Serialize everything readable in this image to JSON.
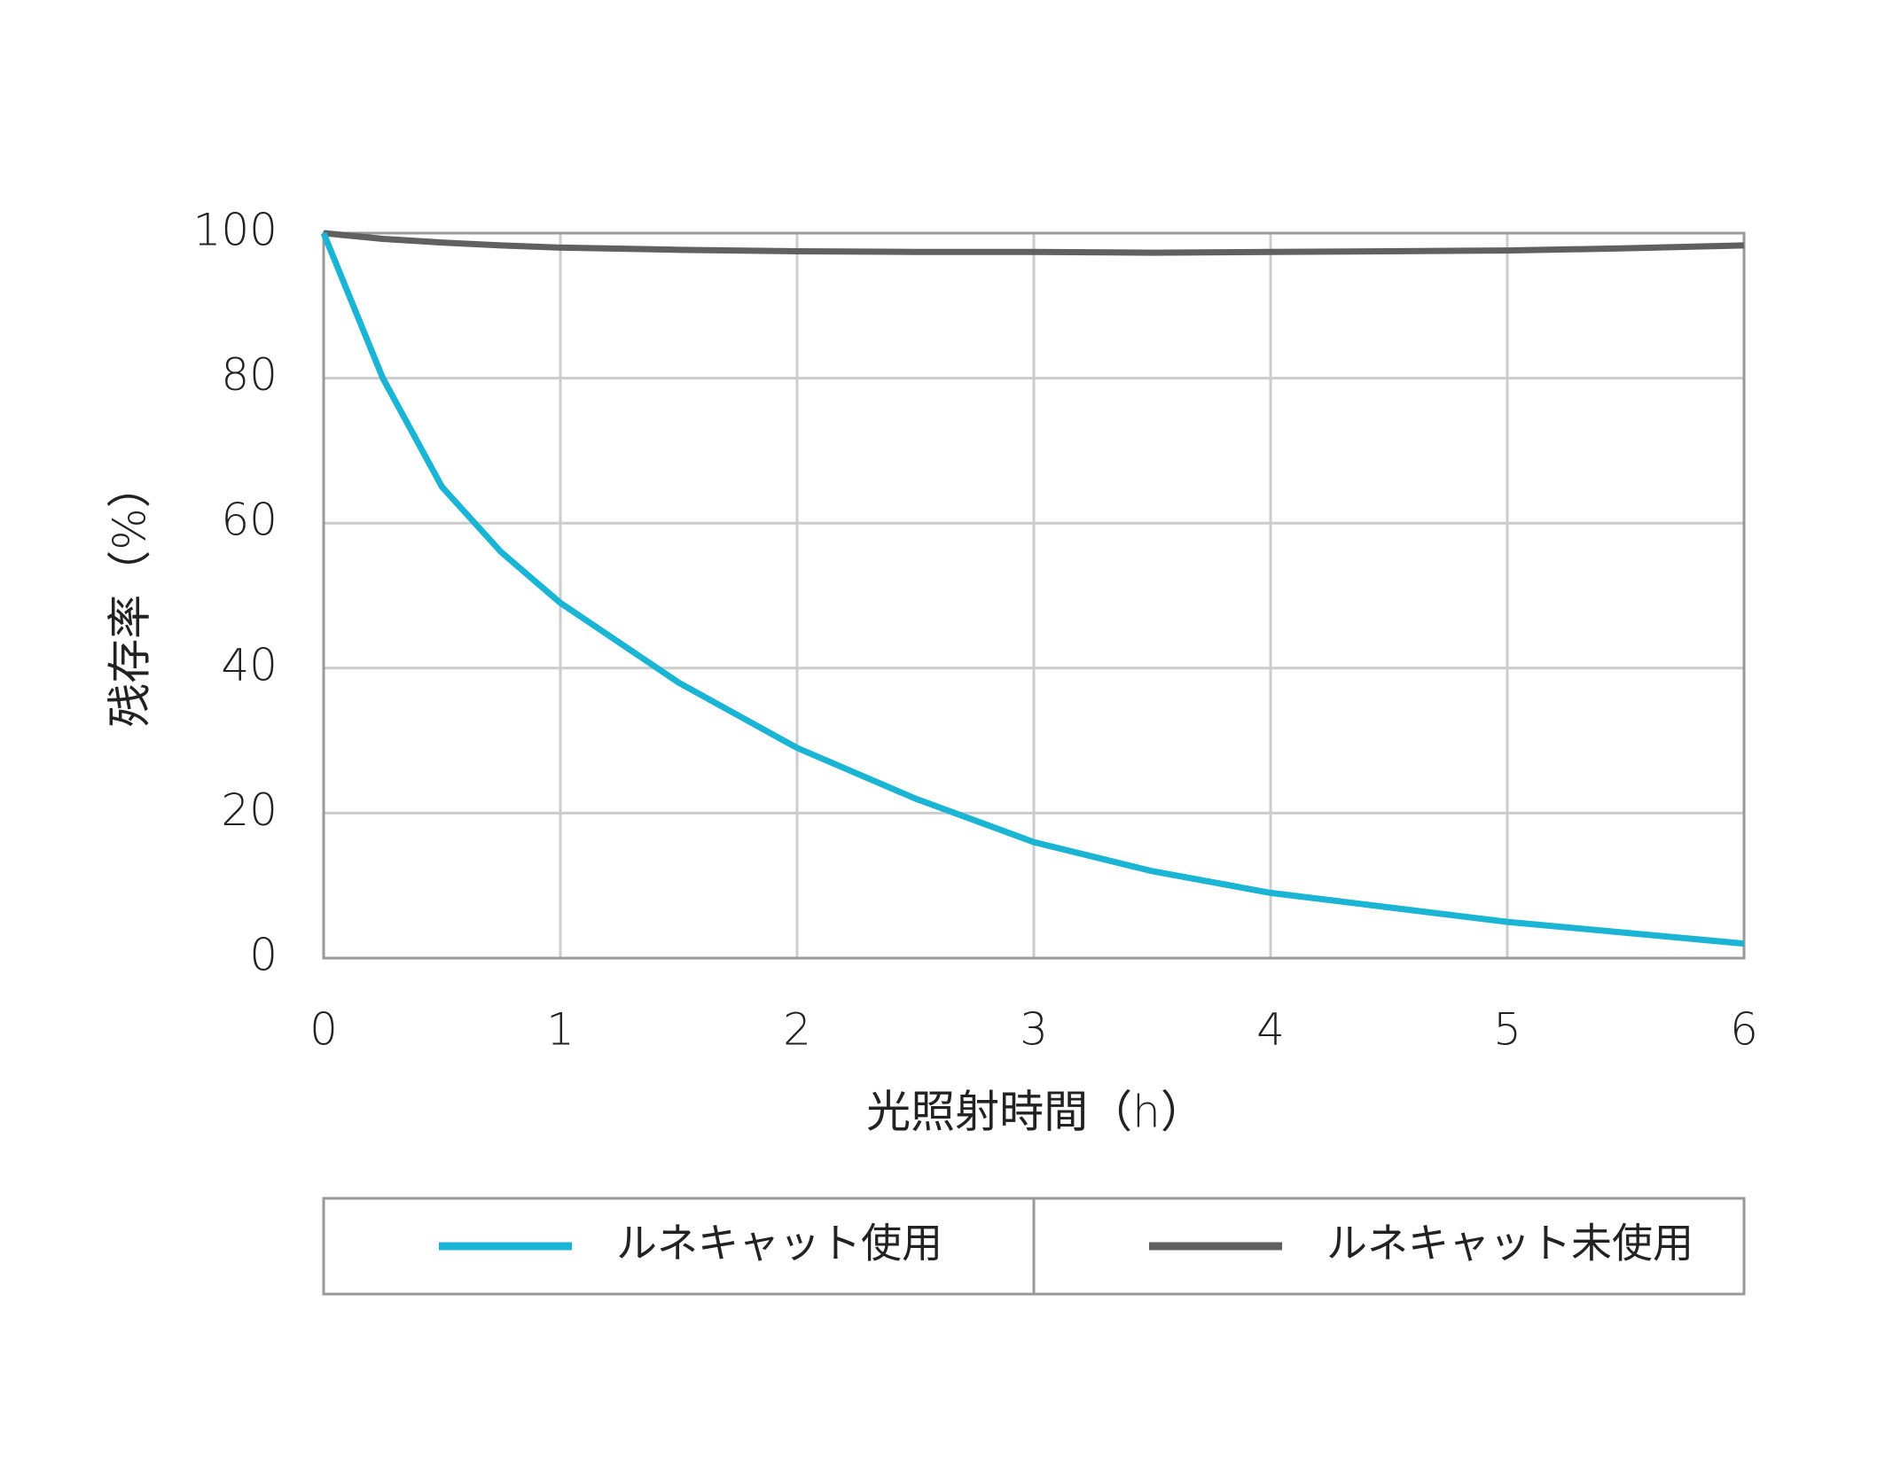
{
  "chart_data": {
    "type": "line",
    "x_label": "光照射時間（h）",
    "y_label": "残存率（%）",
    "x": [
      0,
      0.25,
      0.5,
      0.75,
      1,
      1.5,
      2,
      2.5,
      3,
      3.5,
      4,
      4.5,
      5,
      5.5,
      6
    ],
    "series": [
      {
        "name": "ルネキャット使用",
        "color": "#1ab4d4",
        "values": [
          100,
          80,
          65,
          56,
          49,
          38,
          29,
          22,
          16,
          12,
          9,
          7,
          5,
          3.5,
          2
        ]
      },
      {
        "name": "ルネキャット未使用",
        "color": "#606060",
        "values": [
          100,
          99.2,
          98.7,
          98.3,
          98,
          97.7,
          97.5,
          97.4,
          97.4,
          97.3,
          97.4,
          97.5,
          97.6,
          97.9,
          98.3
        ]
      }
    ],
    "xlim": [
      0,
      6
    ],
    "xticks": [
      0,
      1,
      2,
      3,
      4,
      5,
      6
    ],
    "ylim": [
      0,
      100
    ],
    "yticks": [
      0,
      20,
      40,
      60,
      80,
      100
    ],
    "grid": true,
    "legend": "bottom"
  }
}
